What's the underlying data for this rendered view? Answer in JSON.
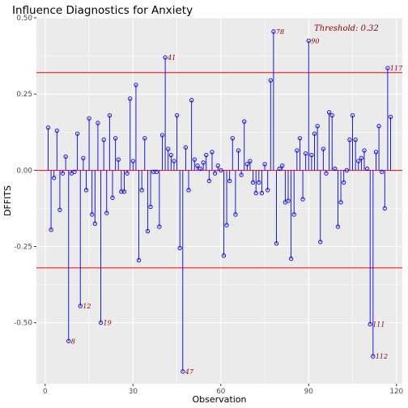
{
  "chart_data": {
    "type": "scatter",
    "title": "Influence Diagnostics for Anxiety",
    "xlabel": "Observation",
    "ylabel": "DFFITS",
    "xlim": [
      -3,
      122
    ],
    "ylim": [
      -0.7,
      0.5
    ],
    "x_ticks": [
      0,
      30,
      60,
      90,
      120
    ],
    "y_ticks": [
      -0.5,
      -0.25,
      0.0,
      0.25,
      0.5
    ],
    "y_tick_labels": [
      "-0.50",
      "-0.25",
      "0.00",
      "0.25",
      "0.50"
    ],
    "threshold": 0.32,
    "threshold_label": "Threshold: 0.32",
    "grid": true,
    "legend": "none",
    "colors": {
      "points": "#0000ff",
      "threshold": "#ff0000",
      "zero_line": "#ff0000",
      "labels": "#8b0000",
      "panel": "#ebebeb",
      "grid": "#ffffff"
    },
    "series": [
      {
        "x": [
          1,
          2,
          3,
          4,
          5,
          6,
          7,
          8,
          9,
          10,
          11,
          12,
          13,
          14,
          15,
          16,
          17,
          18,
          19,
          20,
          21,
          22,
          23,
          24,
          25,
          26,
          27,
          28,
          29,
          30,
          31,
          32,
          33,
          34,
          35,
          36,
          37,
          38,
          39,
          40,
          41,
          42,
          43,
          44,
          45,
          46,
          47,
          48,
          49,
          50,
          51,
          52,
          53,
          54,
          55,
          56,
          57,
          58,
          59,
          60,
          61,
          62,
          63,
          64,
          65,
          66,
          67,
          68,
          69,
          70,
          71,
          72,
          73,
          74,
          75,
          76,
          77,
          78,
          79,
          80,
          81,
          82,
          83,
          84,
          85,
          86,
          87,
          88,
          89,
          90,
          91,
          92,
          93,
          94,
          95,
          96,
          97,
          98,
          99,
          100,
          101,
          102,
          103,
          104,
          105,
          106,
          107,
          108,
          109,
          110,
          111,
          112,
          113,
          114,
          115,
          116,
          117,
          118
        ],
        "values": [
          0.14,
          -0.195,
          -0.025,
          0.13,
          -0.13,
          -0.01,
          0.045,
          -0.56,
          -0.01,
          -0.005,
          0.12,
          -0.445,
          0.04,
          -0.065,
          0.17,
          -0.145,
          -0.175,
          0.155,
          -0.5,
          0.1,
          -0.14,
          0.18,
          -0.09,
          0.105,
          0.035,
          -0.07,
          -0.07,
          -0.01,
          0.235,
          0.03,
          0.28,
          -0.295,
          -0.065,
          0.105,
          -0.2,
          -0.12,
          -0.005,
          -0.005,
          -0.185,
          0.115,
          0.37,
          0.07,
          0.05,
          0.03,
          0.18,
          -0.255,
          -0.66,
          0.075,
          -0.065,
          0.23,
          0.035,
          0.015,
          0.005,
          0.025,
          0.05,
          -0.035,
          0.06,
          -0.01,
          0.015,
          0.0,
          -0.28,
          -0.18,
          -0.035,
          0.105,
          -0.145,
          0.065,
          -0.015,
          0.16,
          0.02,
          0.03,
          -0.04,
          -0.075,
          -0.04,
          -0.075,
          0.02,
          -0.065,
          0.295,
          0.455,
          -0.24,
          0.005,
          0.015,
          -0.105,
          -0.1,
          -0.29,
          -0.145,
          0.065,
          0.105,
          -0.095,
          0.055,
          0.425,
          0.05,
          0.12,
          0.145,
          -0.235,
          0.07,
          -0.01,
          0.19,
          0.18,
          0.005,
          -0.185,
          -0.105,
          -0.04,
          0.0,
          0.1,
          0.18,
          0.1,
          0.03,
          0.04,
          0.065,
          0.005,
          -0.505,
          -0.61,
          0.06,
          0.145,
          -0.005,
          -0.125,
          0.335,
          0.175
        ]
      }
    ],
    "annotations": [
      {
        "x": 8,
        "y": -0.56,
        "text": "8"
      },
      {
        "x": 12,
        "y": -0.445,
        "text": "12"
      },
      {
        "x": 19,
        "y": -0.5,
        "text": "19"
      },
      {
        "x": 41,
        "y": 0.37,
        "text": "41"
      },
      {
        "x": 47,
        "y": -0.66,
        "text": "47"
      },
      {
        "x": 78,
        "y": 0.455,
        "text": "78"
      },
      {
        "x": 90,
        "y": 0.425,
        "text": "90"
      },
      {
        "x": 111,
        "y": -0.505,
        "text": "111"
      },
      {
        "x": 112,
        "y": -0.61,
        "text": "112"
      },
      {
        "x": 117,
        "y": 0.335,
        "text": "117"
      }
    ]
  }
}
